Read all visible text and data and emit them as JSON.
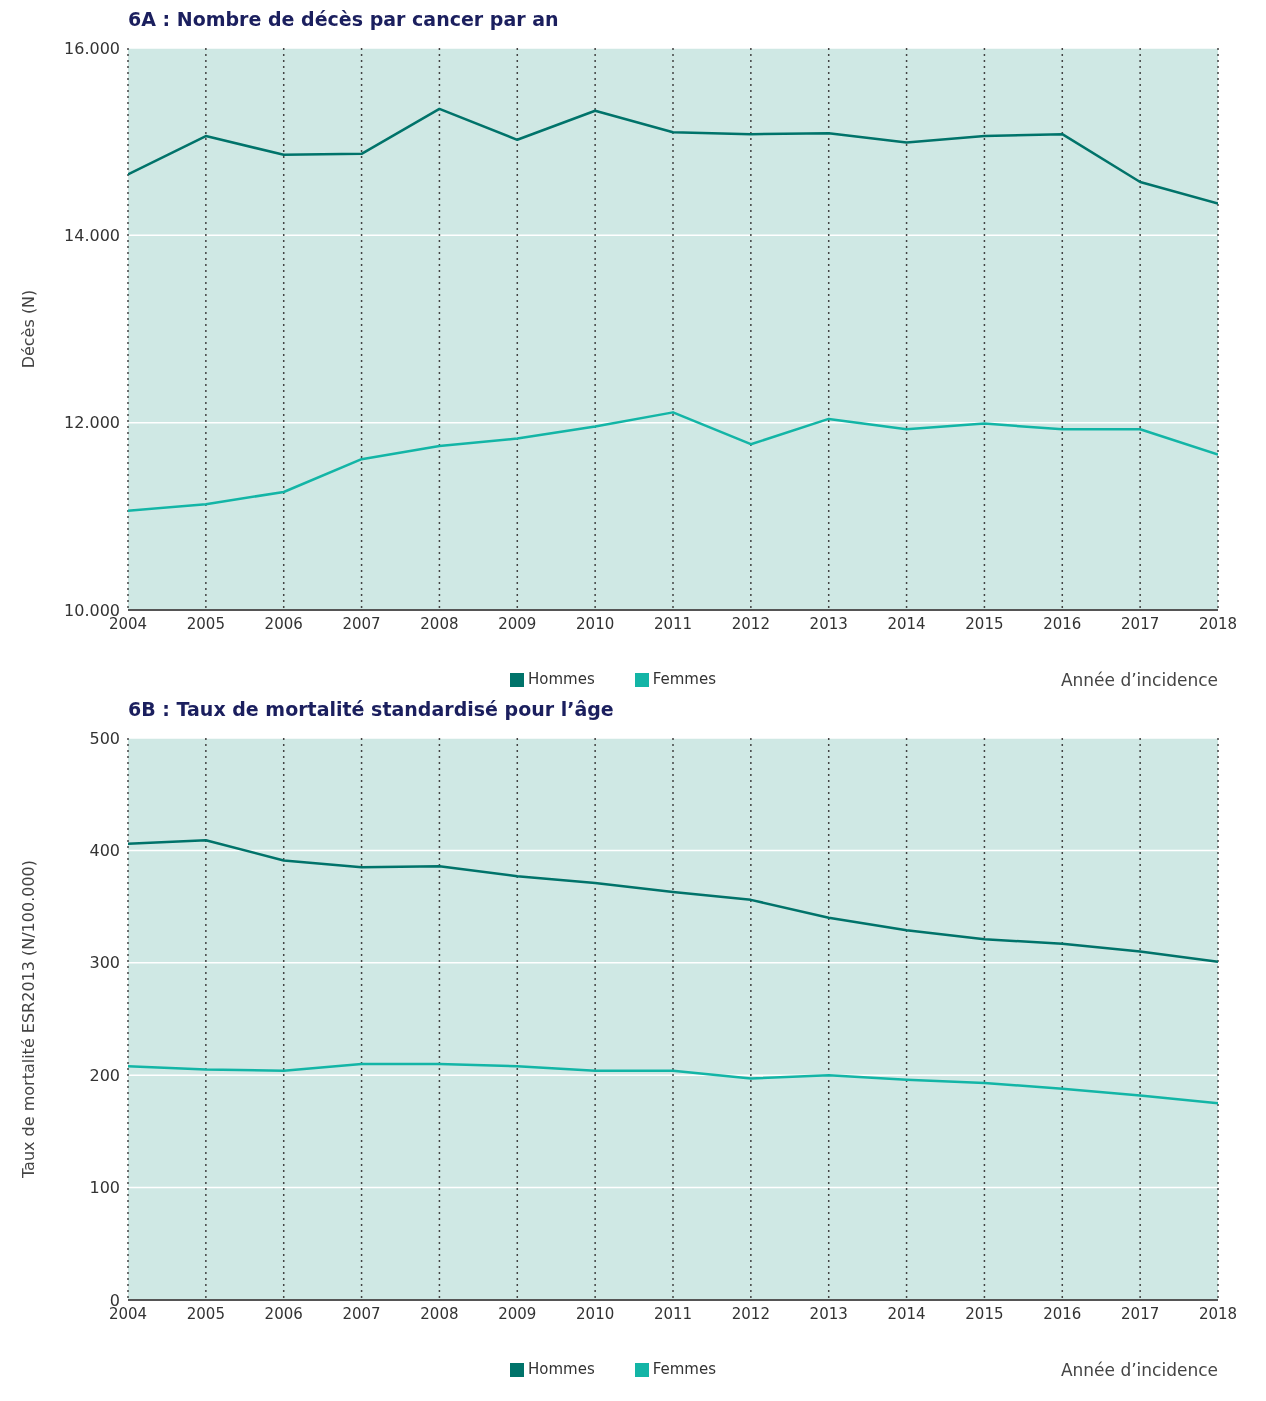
{
  "chart_data": [
    {
      "type": "line",
      "title": "6A : Nombre de décès par cancer par an",
      "ylabel": "Décès (N)",
      "xlabel": "Année d’incidence",
      "x": [
        2004,
        2005,
        2006,
        2007,
        2008,
        2009,
        2010,
        2011,
        2012,
        2013,
        2014,
        2015,
        2016,
        2017,
        2018
      ],
      "series": [
        {
          "name": "Hommes",
          "color": "#00736a",
          "values": [
            14650,
            15060,
            14860,
            14870,
            15350,
            15020,
            15330,
            15100,
            15080,
            15090,
            14990,
            15060,
            15080,
            14570,
            14340
          ]
        },
        {
          "name": "Femmes",
          "color": "#13b5a6",
          "values": [
            11060,
            11130,
            11260,
            11610,
            11750,
            11830,
            11960,
            12110,
            11770,
            12040,
            11930,
            11990,
            11930,
            11930,
            11660
          ]
        }
      ],
      "xlim": [
        2004,
        2018
      ],
      "xticks": [
        2004,
        2005,
        2006,
        2007,
        2008,
        2009,
        2010,
        2011,
        2012,
        2013,
        2014,
        2015,
        2016,
        2017,
        2018
      ],
      "ylim": [
        10000,
        16000
      ],
      "yticks": [
        {
          "value": 10000,
          "label": "10.000"
        },
        {
          "value": 12000,
          "label": "12.000"
        },
        {
          "value": 14000,
          "label": "14.000"
        },
        {
          "value": 16000,
          "label": "16.000"
        }
      ],
      "grid": true,
      "legend": "bottom",
      "marker": "none",
      "line_style": "solid"
    },
    {
      "type": "line",
      "title": "6B : Taux de mortalité standardisé pour l’âge",
      "ylabel": "Taux de mortalité ESR2013 (N/100.000)",
      "xlabel": "Année d’incidence",
      "x": [
        2004,
        2005,
        2006,
        2007,
        2008,
        2009,
        2010,
        2011,
        2012,
        2013,
        2014,
        2015,
        2016,
        2017,
        2018
      ],
      "series": [
        {
          "name": "Hommes",
          "color": "#00736a",
          "values": [
            406,
            409,
            391,
            385,
            386,
            377,
            371,
            363,
            356,
            340,
            329,
            321,
            317,
            310,
            301
          ]
        },
        {
          "name": "Femmes",
          "color": "#13b5a6",
          "values": [
            208,
            205,
            204,
            210,
            210,
            208,
            204,
            204,
            197,
            200,
            196,
            193,
            188,
            182,
            175
          ]
        }
      ],
      "xlim": [
        2004,
        2018
      ],
      "xticks": [
        2004,
        2005,
        2006,
        2007,
        2008,
        2009,
        2010,
        2011,
        2012,
        2013,
        2014,
        2015,
        2016,
        2017,
        2018
      ],
      "ylim": [
        0,
        500
      ],
      "yticks": [
        0,
        100,
        200,
        300,
        400,
        500
      ],
      "grid": true,
      "legend": "bottom",
      "marker": "none",
      "line_style": "solid"
    }
  ]
}
